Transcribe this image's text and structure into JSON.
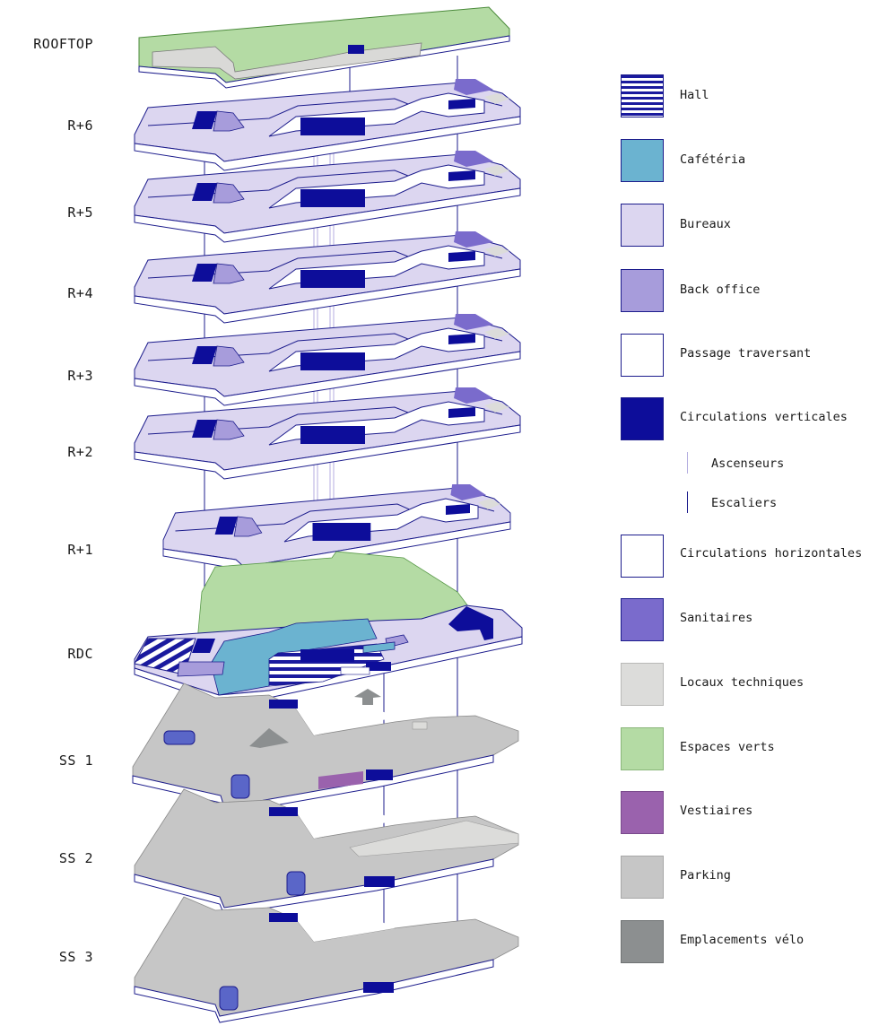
{
  "floors": [
    {
      "id": "rooftop",
      "label": "ROOFTOP"
    },
    {
      "id": "r6",
      "label": "R+6"
    },
    {
      "id": "r5",
      "label": "R+5"
    },
    {
      "id": "r4",
      "label": "R+4"
    },
    {
      "id": "r3",
      "label": "R+3"
    },
    {
      "id": "r2",
      "label": "R+2"
    },
    {
      "id": "r1",
      "label": "R+1"
    },
    {
      "id": "rdc",
      "label": "RDC"
    },
    {
      "id": "ss1",
      "label": "SS 1"
    },
    {
      "id": "ss2",
      "label": "SS 2"
    },
    {
      "id": "ss3",
      "label": "SS 3"
    }
  ],
  "legend": {
    "hall": {
      "label": "Hall",
      "color": "#1a1a9e",
      "pattern": "horizontal-stripes"
    },
    "cafeteria": {
      "label": "Cafétéria",
      "color": "#6bb3d0"
    },
    "bureaux": {
      "label": "Bureaux",
      "color": "#dcd6f0"
    },
    "back_office": {
      "label": "Back office",
      "color": "#a79cdb"
    },
    "passage": {
      "label": "Passage traversant",
      "color": "#ffffff"
    },
    "circ_vert": {
      "label": "Circulations verticales",
      "color": "#0d0d9a"
    },
    "ascenseurs": {
      "label": "Ascenseurs",
      "color": "#b5aee0"
    },
    "escaliers": {
      "label": "Escaliers",
      "color": "#1c1c8c"
    },
    "circ_horiz": {
      "label": "Circulations horizontales",
      "color": "#ffffff"
    },
    "sanitaires": {
      "label": "Sanitaires",
      "color": "#7a6bcc"
    },
    "locaux": {
      "label": "Locaux techniques",
      "color": "#dcdcda"
    },
    "verts": {
      "label": "Espaces verts",
      "color": "#b4dba4"
    },
    "vestiaires": {
      "label": "Vestiaires",
      "color": "#9a62ad"
    },
    "parking": {
      "label": "Parking",
      "color": "#c6c6c6"
    },
    "velo": {
      "label": "Emplacements vélo",
      "color": "#8c8f90"
    }
  }
}
